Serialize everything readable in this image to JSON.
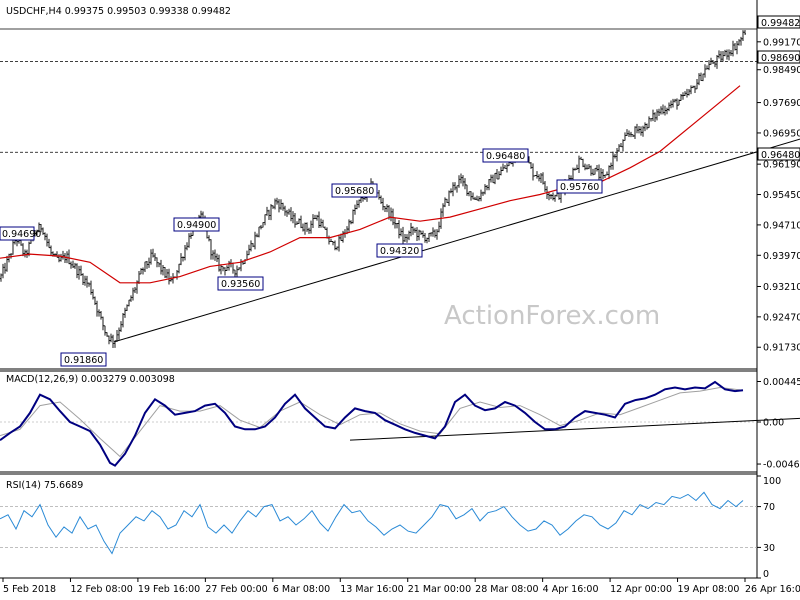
{
  "colors": {
    "background": "#ffffff",
    "price": "#000000",
    "ma": "#d00000",
    "macd_line": "#000080",
    "macd_signal": "#a0a0a0",
    "rsi": "#2a8ad6",
    "trendline": "#000000",
    "box_border": "#000080",
    "watermark": "#c8c8c8"
  },
  "chart_data": [
    {
      "type": "ohlc",
      "panel": "price",
      "title": "USDCHF,H4  0.99375 0.99503 0.99338 0.99482",
      "ylim": [
        0.912,
        0.9975
      ],
      "yticks": [
        "0.99170",
        "0.98490",
        "0.97690",
        "0.96950",
        "0.96190",
        "0.95450",
        "0.94710",
        "0.93970",
        "0.93210",
        "0.92470",
        "0.91730"
      ],
      "xticks": [
        "5 Feb 2018",
        "12 Feb 08:00",
        "19 Feb 16:00",
        "27 Feb 00:00",
        "6 Mar 08:00",
        "13 Mar 16:00",
        "21 Mar 00:00",
        "28 Mar 08:00",
        "4 Apr 16:00",
        "12 Apr 00:00",
        "19 Apr 08:00",
        "26 Apr 16:00"
      ],
      "series": [
        {
          "kind": "close_approx",
          "x": [
            0,
            8,
            16,
            25,
            34,
            42,
            50,
            58,
            66,
            74,
            82,
            90,
            98,
            106,
            114,
            122,
            132,
            142,
            152,
            162,
            172,
            182,
            192,
            202,
            212,
            220,
            228,
            236,
            244,
            252,
            260,
            268,
            276,
            284,
            292,
            300,
            308,
            316,
            324,
            332,
            340,
            348,
            356,
            364,
            372,
            380,
            388,
            396,
            404,
            412,
            420,
            428,
            436,
            444,
            452,
            460,
            468,
            476,
            484,
            492,
            500,
            508,
            516,
            524,
            532,
            540,
            548,
            556,
            564,
            572,
            580,
            588,
            596,
            604,
            612,
            620,
            628,
            636,
            644,
            652,
            660,
            668,
            676,
            684,
            692,
            700,
            708,
            716,
            724,
            732,
            740,
            746
          ],
          "values": [
            0.934,
            0.9385,
            0.944,
            0.9395,
            0.945,
            0.9469,
            0.9405,
            0.938,
            0.9395,
            0.937,
            0.9345,
            0.932,
            0.926,
            0.9205,
            0.9186,
            0.924,
            0.93,
            0.936,
            0.9395,
            0.936,
            0.933,
            0.9395,
            0.946,
            0.949,
            0.94,
            0.9365,
            0.937,
            0.936,
            0.939,
            0.9425,
            0.9465,
            0.95,
            0.953,
            0.951,
            0.9485,
            0.9475,
            0.946,
            0.9495,
            0.9455,
            0.942,
            0.943,
            0.947,
            0.9515,
            0.954,
            0.9568,
            0.953,
            0.9505,
            0.947,
            0.9432,
            0.946,
            0.9445,
            0.944,
            0.945,
            0.952,
            0.956,
            0.958,
            0.9555,
            0.953,
            0.956,
            0.958,
            0.96,
            0.9615,
            0.964,
            0.9648,
            0.96,
            0.959,
            0.955,
            0.9537,
            0.956,
            0.96,
            0.963,
            0.961,
            0.96,
            0.958,
            0.963,
            0.966,
            0.969,
            0.97,
            0.971,
            0.973,
            0.975,
            0.976,
            0.977,
            0.978,
            0.98,
            0.983,
            0.986,
            0.987,
            0.9885,
            0.99,
            0.992,
            0.9948
          ]
        },
        {
          "kind": "moving_average",
          "x": [
            0,
            30,
            60,
            90,
            120,
            150,
            180,
            210,
            240,
            270,
            300,
            330,
            360,
            390,
            420,
            450,
            480,
            510,
            540,
            570,
            600,
            630,
            660,
            690,
            720,
            740
          ],
          "values": [
            0.939,
            0.94,
            0.9395,
            0.938,
            0.933,
            0.933,
            0.9345,
            0.937,
            0.938,
            0.9405,
            0.944,
            0.944,
            0.946,
            0.949,
            0.948,
            0.949,
            0.951,
            0.953,
            0.9545,
            0.9565,
            0.9575,
            0.961,
            0.965,
            0.971,
            0.977,
            0.981
          ]
        }
      ],
      "levels": [
        {
          "label": "0.99482",
          "value": 0.99482,
          "style": "solid"
        },
        {
          "label": "0.98690",
          "value": 0.9869,
          "style": "dashed"
        },
        {
          "label": "0.96480",
          "value": 0.9648,
          "style": "dashed"
        }
      ],
      "trendline": {
        "x": [
          114,
          800
        ],
        "values": [
          0.9186,
          0.968
        ]
      },
      "annotations": [
        "0.94690",
        "0.91860",
        "0.94900",
        "0.93560",
        "0.95680",
        "0.94320",
        "0.96480",
        "0.95760"
      ],
      "watermark": "ActionForex.com"
    },
    {
      "type": "line",
      "panel": "macd",
      "title": "MACD(12,26,9) 0.003279 0.003098",
      "ylim": [
        -0.0055,
        0.0055
      ],
      "yticks": [
        "0.004454",
        "0.00",
        "-0.004624"
      ],
      "series": [
        {
          "name": "MACD",
          "x": [
            0,
            10,
            20,
            30,
            40,
            50,
            60,
            70,
            80,
            90,
            100,
            110,
            115,
            125,
            135,
            145,
            155,
            165,
            175,
            185,
            195,
            205,
            215,
            225,
            235,
            245,
            255,
            265,
            275,
            285,
            295,
            305,
            315,
            325,
            335,
            345,
            355,
            365,
            375,
            385,
            395,
            405,
            415,
            425,
            435,
            445,
            455,
            465,
            475,
            485,
            495,
            505,
            515,
            525,
            535,
            545,
            555,
            565,
            575,
            585,
            595,
            605,
            615,
            625,
            635,
            645,
            655,
            665,
            675,
            685,
            695,
            705,
            715,
            725,
            735,
            743
          ],
          "values": [
            -0.002,
            -0.0012,
            -0.0005,
            0.001,
            0.003,
            0.0025,
            0.0012,
            0.0,
            -0.0005,
            -0.001,
            -0.0025,
            -0.0045,
            -0.0048,
            -0.0035,
            -0.0015,
            0.001,
            0.0025,
            0.0018,
            0.0008,
            0.001,
            0.0012,
            0.0018,
            0.002,
            0.001,
            -0.0005,
            -0.0008,
            -0.0008,
            -0.0005,
            0.0005,
            0.002,
            0.003,
            0.0015,
            0.0005,
            -0.0005,
            -0.0007,
            0.0005,
            0.0015,
            0.0012,
            0.001,
            0.0002,
            -0.0003,
            -0.0008,
            -0.0012,
            -0.0015,
            -0.0018,
            -0.0005,
            0.0022,
            0.003,
            0.0018,
            0.0013,
            0.0015,
            0.0022,
            0.0018,
            0.001,
            0.0,
            -0.0008,
            -0.0008,
            -0.0005,
            0.0005,
            0.0012,
            0.001,
            0.0008,
            0.0005,
            0.002,
            0.0024,
            0.0026,
            0.003,
            0.0036,
            0.0038,
            0.0036,
            0.0038,
            0.0037,
            0.0044,
            0.0036,
            0.0034,
            0.0035
          ]
        },
        {
          "name": "Signal",
          "x": [
            0,
            20,
            40,
            60,
            80,
            100,
            120,
            140,
            160,
            180,
            200,
            220,
            240,
            260,
            280,
            300,
            320,
            340,
            360,
            380,
            400,
            420,
            440,
            460,
            480,
            500,
            520,
            540,
            560,
            580,
            600,
            620,
            640,
            660,
            680,
            700,
            720,
            743
          ],
          "values": [
            -0.0015,
            -0.0008,
            0.0018,
            0.0022,
            0.0003,
            -0.0018,
            -0.0038,
            -0.001,
            0.0018,
            0.0012,
            0.0012,
            0.0018,
            0.0002,
            -0.0006,
            0.0012,
            0.0022,
            0.0008,
            -0.0003,
            0.0008,
            0.001,
            -0.0002,
            -0.001,
            -0.0013,
            0.0015,
            0.0022,
            0.0016,
            0.0018,
            0.0008,
            -0.0004,
            0.0002,
            0.001,
            0.0008,
            0.0016,
            0.0024,
            0.0032,
            0.0034,
            0.0038,
            0.0035
          ]
        }
      ],
      "trendline": {
        "x": [
          350,
          800
        ],
        "values": [
          -0.002,
          0.0004
        ]
      }
    },
    {
      "type": "line",
      "panel": "rsi",
      "title": "RSI(14) 75.6689",
      "ylim": [
        0,
        100
      ],
      "yticks": [
        "100",
        "70",
        "30",
        "0"
      ],
      "levels": [
        70,
        30
      ],
      "series": [
        {
          "name": "RSI",
          "x": [
            0,
            8,
            16,
            24,
            32,
            40,
            48,
            56,
            64,
            72,
            80,
            88,
            96,
            104,
            112,
            120,
            128,
            136,
            144,
            152,
            160,
            168,
            176,
            184,
            192,
            200,
            208,
            216,
            224,
            232,
            240,
            248,
            256,
            264,
            272,
            280,
            288,
            296,
            304,
            312,
            320,
            328,
            336,
            344,
            352,
            360,
            368,
            376,
            384,
            392,
            400,
            408,
            416,
            424,
            432,
            440,
            448,
            456,
            464,
            472,
            480,
            488,
            496,
            504,
            512,
            520,
            528,
            536,
            544,
            552,
            560,
            568,
            576,
            584,
            592,
            600,
            608,
            616,
            624,
            632,
            640,
            648,
            656,
            664,
            672,
            680,
            688,
            696,
            704,
            712,
            720,
            728,
            736,
            743
          ],
          "values": [
            58,
            62,
            48,
            66,
            60,
            72,
            52,
            40,
            50,
            44,
            60,
            48,
            52,
            36,
            24,
            44,
            52,
            60,
            56,
            66,
            60,
            48,
            52,
            66,
            60,
            72,
            50,
            44,
            52,
            44,
            56,
            66,
            60,
            70,
            72,
            56,
            60,
            52,
            58,
            66,
            54,
            46,
            60,
            72,
            64,
            66,
            56,
            50,
            42,
            48,
            52,
            46,
            44,
            52,
            60,
            72,
            70,
            58,
            62,
            68,
            56,
            64,
            66,
            70,
            60,
            52,
            46,
            48,
            56,
            52,
            42,
            48,
            56,
            62,
            60,
            52,
            48,
            54,
            66,
            62,
            72,
            68,
            74,
            72,
            80,
            78,
            82,
            76,
            84,
            72,
            68,
            76,
            70,
            76
          ]
        }
      ]
    }
  ]
}
